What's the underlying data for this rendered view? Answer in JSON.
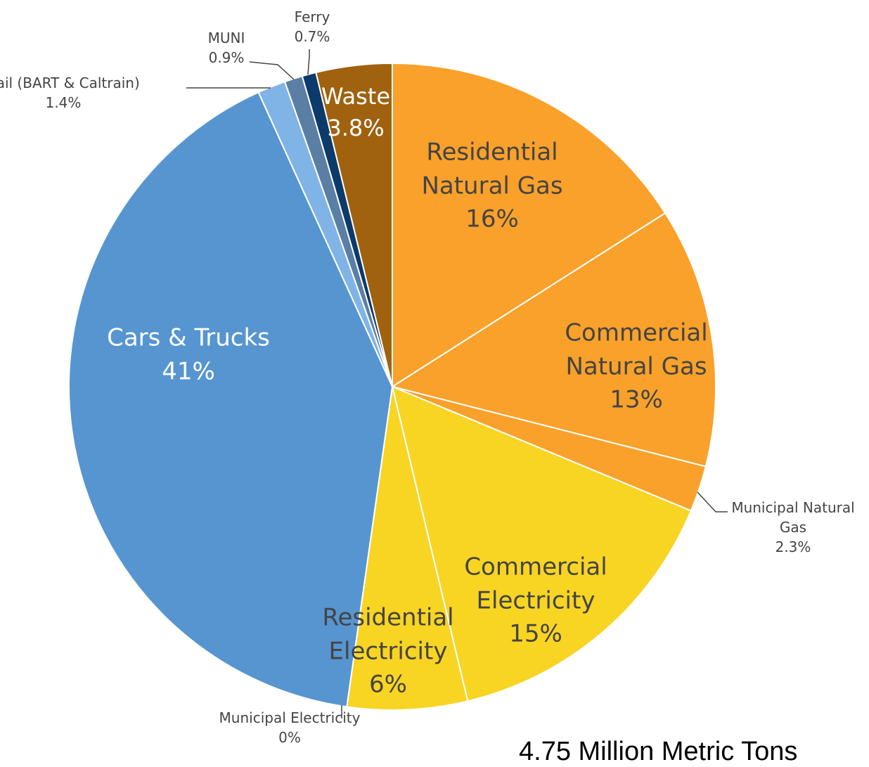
{
  "chart_data": {
    "type": "pie",
    "categories": [
      "Residential Natural Gas",
      "Commercial Natural Gas",
      "Municipal Natural Gas",
      "Commercial Electricity",
      "Residential Electricity",
      "Municipal Electricity",
      "Cars & Trucks",
      "Rail (BART & Caltrain)",
      "MUNI",
      "Ferry",
      "Waste"
    ],
    "values": [
      16,
      13,
      2.3,
      15,
      6,
      0,
      41,
      1.4,
      0.9,
      0.7,
      3.8
    ],
    "value_labels": [
      "16%",
      "13%",
      "2.3%",
      "15%",
      "6%",
      "0%",
      "41%",
      "1.4%",
      "0.9%",
      "0.7%",
      "3.8%"
    ],
    "colors": [
      "#f9a12a",
      "#f9a12a",
      "#f9a12a",
      "#f8d423",
      "#f8d423",
      "#f8d423",
      "#5795d1",
      "#80b4e6",
      "#5b7fa4",
      "#0c3a6b",
      "#a0620f"
    ],
    "caption": "4.75 Million Metric Tons"
  }
}
